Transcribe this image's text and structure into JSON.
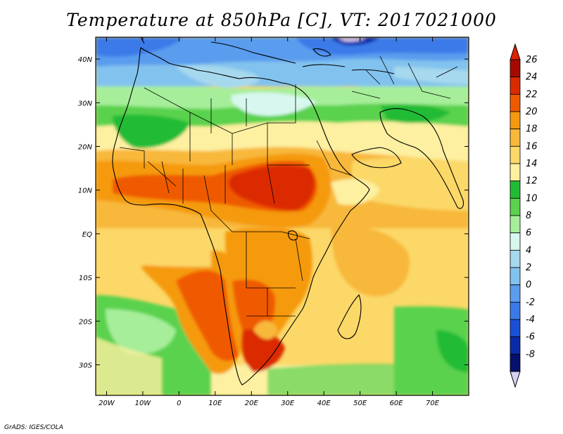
{
  "title": "Temperature at 850hPa [C], VT: 2017021000",
  "credit": "GrADS: IGES/COLA",
  "map": {
    "lon_range": [
      -23,
      80
    ],
    "lat_range": [
      -37,
      45
    ],
    "x_ticks": [
      {
        "value": -20,
        "label": "20W"
      },
      {
        "value": -10,
        "label": "10W"
      },
      {
        "value": 0,
        "label": "0"
      },
      {
        "value": 10,
        "label": "10E"
      },
      {
        "value": 20,
        "label": "20E"
      },
      {
        "value": 30,
        "label": "30E"
      },
      {
        "value": 40,
        "label": "40E"
      },
      {
        "value": 50,
        "label": "50E"
      },
      {
        "value": 60,
        "label": "60E"
      },
      {
        "value": 70,
        "label": "70E"
      }
    ],
    "y_ticks": [
      {
        "value": 40,
        "label": "40N"
      },
      {
        "value": 30,
        "label": "30N"
      },
      {
        "value": 20,
        "label": "20N"
      },
      {
        "value": 10,
        "label": "10N"
      },
      {
        "value": 0,
        "label": "EQ"
      },
      {
        "value": -10,
        "label": "10S"
      },
      {
        "value": -20,
        "label": "20S"
      },
      {
        "value": -30,
        "label": "30S"
      }
    ]
  },
  "colorbar": {
    "levels": [
      {
        "label": "26",
        "color": "#a50a00"
      },
      {
        "label": "24",
        "color": "#dc2a00"
      },
      {
        "label": "22",
        "color": "#ef5a00"
      },
      {
        "label": "20",
        "color": "#f59a10"
      },
      {
        "label": "18",
        "color": "#f8b83a"
      },
      {
        "label": "16",
        "color": "#fbd868"
      },
      {
        "label": "14",
        "color": "#fdf0a0"
      },
      {
        "label": "12",
        "color": "#22bb36"
      },
      {
        "label": "10",
        "color": "#5ad24e"
      },
      {
        "label": "8",
        "color": "#a6ee9a"
      },
      {
        "label": "6",
        "color": "#d8f8ef"
      },
      {
        "label": "4",
        "color": "#a6d8ee"
      },
      {
        "label": "2",
        "color": "#82c2ee"
      },
      {
        "label": "0",
        "color": "#5a9cee"
      },
      {
        "label": "-2",
        "color": "#3a7ae8"
      },
      {
        "label": "-4",
        "color": "#1a50d8"
      },
      {
        "label": "-6",
        "color": "#0a2aa8"
      },
      {
        "label": "-8",
        "color": "#06106e"
      }
    ],
    "top_arrow_color": "#e02000",
    "bottom_arrow_color": "#d8d0f4"
  }
}
